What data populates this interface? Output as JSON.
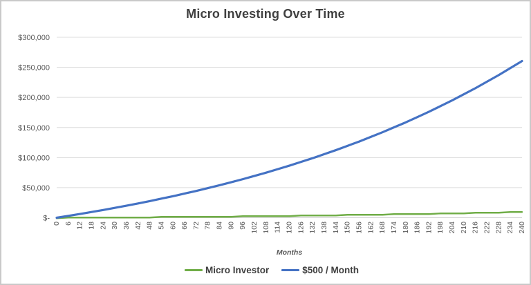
{
  "chart_data": {
    "type": "line",
    "title": "Micro Investing Over Time",
    "xlabel": "Months",
    "ylabel": "",
    "x_range": [
      0,
      240
    ],
    "y_range": [
      0,
      300000
    ],
    "grid": true,
    "legend_position": "bottom",
    "x_ticks": [
      0,
      6,
      12,
      18,
      24,
      30,
      36,
      42,
      48,
      54,
      60,
      66,
      72,
      78,
      84,
      90,
      96,
      102,
      108,
      114,
      120,
      126,
      132,
      138,
      144,
      150,
      156,
      162,
      168,
      174,
      180,
      186,
      192,
      198,
      204,
      210,
      216,
      222,
      228,
      234,
      240
    ],
    "y_ticks": [
      {
        "value": 0,
        "label": "$-"
      },
      {
        "value": 50000,
        "label": "$50,000"
      },
      {
        "value": 100000,
        "label": "$100,000"
      },
      {
        "value": 150000,
        "label": "$150,000"
      },
      {
        "value": 200000,
        "label": "$200,000"
      },
      {
        "value": 250000,
        "label": "$250,000"
      },
      {
        "value": 300000,
        "label": "$300,000"
      }
    ],
    "x_sample_months": [
      0,
      12,
      24,
      36,
      48,
      60,
      72,
      84,
      96,
      108,
      120,
      132,
      144,
      156,
      168,
      180,
      192,
      204,
      216,
      228,
      240
    ],
    "series": [
      {
        "name": "Micro Investor",
        "color": "#70AD47",
        "values": [
          0,
          238,
          493,
          767,
          1061,
          1375,
          1712,
          2074,
          2462,
          2878,
          3323,
          3801,
          4314,
          4864,
          5454,
          6086,
          6764,
          7490,
          8270,
          9107,
          10002
        ]
      },
      {
        "name": "$500 / Month",
        "color": "#4472C4",
        "values": [
          0,
          6197,
          12841,
          19966,
          27611,
          35796,
          44581,
          54000,
          64100,
          74930,
          86542,
          98995,
          112357,
          126675,
          142029,
          158494,
          176151,
          195087,
          215392,
          237166,
          260463
        ]
      }
    ]
  },
  "legend": {
    "items": [
      {
        "label": "Micro Investor",
        "color": "#70AD47"
      },
      {
        "label": "$500 / Month",
        "color": "#4472C4"
      }
    ]
  },
  "colors": {
    "title_text": "#404040",
    "axis_label_text": "#595959",
    "gridline": "#DCDCDC",
    "axis_line": "#D2D2D2",
    "background": "#FFFFFF",
    "frame_border": "#C9C9C9",
    "green_series": "#70AD47",
    "blue_series": "#4472C4"
  }
}
